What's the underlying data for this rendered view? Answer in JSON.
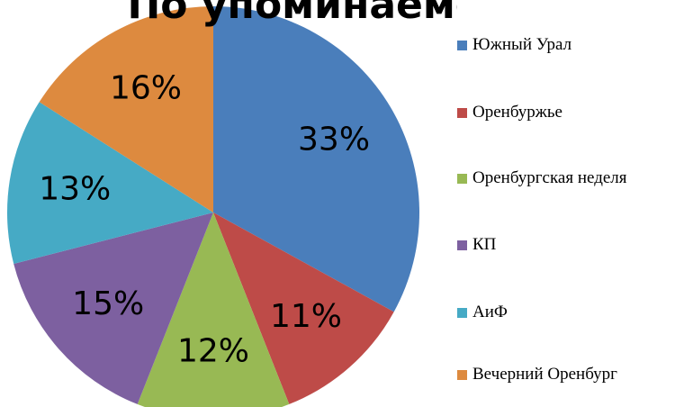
{
  "chart_data": {
    "type": "pie",
    "title": "По упоминаемости",
    "categories": [
      "Южный Урал",
      "Оренбуржье",
      "Оренбургская неделя",
      "КП",
      "АиФ",
      "Вечерний Оренбург"
    ],
    "values": [
      33,
      11,
      12,
      15,
      13,
      16
    ],
    "value_labels": [
      "33%",
      "11%",
      "12%",
      "15%",
      "13%",
      "16%"
    ],
    "colors": [
      "#4a7ebb",
      "#be4b48",
      "#98b954",
      "#7d60a0",
      "#46aac5",
      "#dd8a3f"
    ],
    "legend": "right"
  }
}
